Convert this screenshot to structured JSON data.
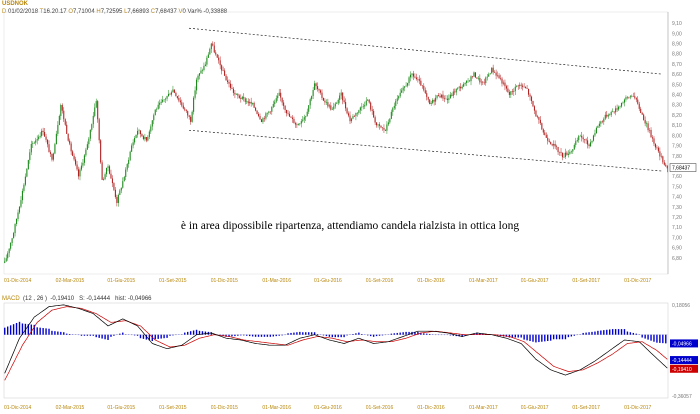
{
  "header": {
    "symbol": "USDNOK",
    "date": "01/02/2018",
    "time": "16.20.17",
    "open": "7,71004",
    "high": "7,72595",
    "low": "7,66893",
    "close": "7,68437",
    "volume": "0",
    "var": "Var% -0,33888"
  },
  "annotation": "è in area dipossibile ripartenza, attendiamo candela rialzista in ottica long",
  "colors": {
    "bull": "#1a8a1a",
    "bear": "#b22222",
    "macd_line": "#000000",
    "signal_line": "#cc0000",
    "hist": "#0000cc",
    "channel": "#000000",
    "axis_text": "#b8860b"
  },
  "chart_data": [
    {
      "type": "candlestick",
      "title": "USDNOK",
      "x_ticks": [
        "01-Dic-2014",
        "02-Mar-2015",
        "01-Giu-2015",
        "01-Set-2015",
        "01-Dic-2015",
        "01-Mar-2016",
        "01-Giu-2016",
        "01-Set-2016",
        "01-Dic-2016",
        "01-Mar-2017",
        "01-Giu-2017",
        "01-Set-2017",
        "01-Dic-2017"
      ],
      "y_ticks": [
        "9,10",
        "9,00",
        "8,90",
        "8,80",
        "8,70",
        "8,60",
        "8,50",
        "8,40",
        "8,30",
        "8,20",
        "8,10",
        "8,00",
        "7,90",
        "7,80",
        "7,70",
        "7,60",
        "7,50",
        "7,40",
        "7,30",
        "7,20",
        "7,10",
        "7,00",
        "6,90",
        "6,80"
      ],
      "ylim": [
        6.7,
        9.15
      ],
      "last_price_label": "7,68437",
      "anchors": [
        [
          0,
          6.75
        ],
        [
          6,
          7.05
        ],
        [
          12,
          7.45
        ],
        [
          18,
          7.9
        ],
        [
          26,
          8.05
        ],
        [
          32,
          7.75
        ],
        [
          38,
          8.3
        ],
        [
          44,
          7.9
        ],
        [
          50,
          7.6
        ],
        [
          56,
          7.9
        ],
        [
          62,
          8.35
        ],
        [
          66,
          7.55
        ],
        [
          70,
          7.7
        ],
        [
          76,
          7.35
        ],
        [
          82,
          7.65
        ],
        [
          86,
          7.9
        ],
        [
          90,
          8.05
        ],
        [
          96,
          7.95
        ],
        [
          102,
          8.25
        ],
        [
          108,
          8.35
        ],
        [
          114,
          8.45
        ],
        [
          120,
          8.3
        ],
        [
          126,
          8.15
        ],
        [
          130,
          8.55
        ],
        [
          136,
          8.7
        ],
        [
          140,
          8.9
        ],
        [
          144,
          8.75
        ],
        [
          150,
          8.55
        ],
        [
          156,
          8.4
        ],
        [
          162,
          8.35
        ],
        [
          168,
          8.3
        ],
        [
          174,
          8.15
        ],
        [
          180,
          8.25
        ],
        [
          186,
          8.4
        ],
        [
          192,
          8.2
        ],
        [
          198,
          8.1
        ],
        [
          204,
          8.2
        ],
        [
          210,
          8.5
        ],
        [
          216,
          8.35
        ],
        [
          222,
          8.25
        ],
        [
          228,
          8.4
        ],
        [
          234,
          8.15
        ],
        [
          240,
          8.25
        ],
        [
          246,
          8.35
        ],
        [
          252,
          8.1
        ],
        [
          258,
          8.05
        ],
        [
          264,
          8.3
        ],
        [
          270,
          8.45
        ],
        [
          276,
          8.6
        ],
        [
          282,
          8.5
        ],
        [
          288,
          8.3
        ],
        [
          294,
          8.4
        ],
        [
          300,
          8.35
        ],
        [
          306,
          8.45
        ],
        [
          312,
          8.5
        ],
        [
          318,
          8.6
        ],
        [
          324,
          8.5
        ],
        [
          330,
          8.65
        ],
        [
          336,
          8.55
        ],
        [
          342,
          8.4
        ],
        [
          348,
          8.5
        ],
        [
          354,
          8.45
        ],
        [
          360,
          8.2
        ],
        [
          366,
          8.0
        ],
        [
          372,
          7.9
        ],
        [
          378,
          7.8
        ],
        [
          384,
          7.85
        ],
        [
          390,
          8.0
        ],
        [
          396,
          7.9
        ],
        [
          402,
          8.1
        ],
        [
          408,
          8.2
        ],
        [
          414,
          8.25
        ],
        [
          420,
          8.35
        ],
        [
          426,
          8.4
        ],
        [
          432,
          8.2
        ],
        [
          438,
          8.0
        ],
        [
          444,
          7.8
        ],
        [
          449,
          7.68
        ]
      ],
      "channel_upper": {
        "from": {
          "x": "01-Set-2015",
          "y": 9.05
        },
        "to": {
          "x": "right",
          "y": 8.6
        }
      },
      "channel_lower": {
        "from": {
          "x": "01-Set-2015",
          "y": 8.05
        },
        "to": {
          "x": "right",
          "y": 7.65
        }
      }
    },
    {
      "type": "macd",
      "title": "MACD",
      "params": "(12 , 26 )",
      "macd_label": "-0,19410",
      "signal_label": "S:",
      "signal_value": "-0,14444",
      "hist_label": "hist:",
      "hist_value": "-0,04966",
      "y_ticks": [
        "0,18056",
        "-0,04966",
        "-0,14444",
        "-0,19410",
        "-0,36057"
      ],
      "ylim": [
        -0.36057,
        0.18056
      ],
      "macd_anchors": [
        [
          0,
          -0.22
        ],
        [
          10,
          -0.02
        ],
        [
          20,
          0.1
        ],
        [
          30,
          0.16
        ],
        [
          40,
          0.17
        ],
        [
          50,
          0.15
        ],
        [
          60,
          0.12
        ],
        [
          70,
          0.05
        ],
        [
          80,
          0.09
        ],
        [
          90,
          0.05
        ],
        [
          100,
          -0.05
        ],
        [
          110,
          -0.08
        ],
        [
          120,
          -0.06
        ],
        [
          130,
          0.0
        ],
        [
          140,
          0.01
        ],
        [
          150,
          -0.02
        ],
        [
          160,
          -0.03
        ],
        [
          170,
          -0.05
        ],
        [
          180,
          -0.06
        ],
        [
          190,
          -0.06
        ],
        [
          200,
          -0.02
        ],
        [
          210,
          0.0
        ],
        [
          220,
          -0.03
        ],
        [
          230,
          -0.05
        ],
        [
          240,
          -0.02
        ],
        [
          250,
          -0.05
        ],
        [
          260,
          -0.04
        ],
        [
          270,
          -0.01
        ],
        [
          280,
          0.02
        ],
        [
          290,
          0.02
        ],
        [
          300,
          0.01
        ],
        [
          310,
          -0.01
        ],
        [
          320,
          0.01
        ],
        [
          330,
          0.0
        ],
        [
          340,
          -0.02
        ],
        [
          350,
          -0.05
        ],
        [
          360,
          -0.14
        ],
        [
          370,
          -0.2
        ],
        [
          380,
          -0.23
        ],
        [
          390,
          -0.2
        ],
        [
          400,
          -0.15
        ],
        [
          410,
          -0.09
        ],
        [
          420,
          -0.03
        ],
        [
          430,
          -0.04
        ],
        [
          440,
          -0.12
        ],
        [
          449,
          -0.19
        ]
      ],
      "signal_anchors": [
        [
          0,
          -0.26
        ],
        [
          12,
          -0.06
        ],
        [
          22,
          0.07
        ],
        [
          32,
          0.14
        ],
        [
          42,
          0.16
        ],
        [
          52,
          0.15
        ],
        [
          62,
          0.12
        ],
        [
          72,
          0.07
        ],
        [
          82,
          0.08
        ],
        [
          92,
          0.05
        ],
        [
          102,
          -0.03
        ],
        [
          112,
          -0.07
        ],
        [
          122,
          -0.06
        ],
        [
          132,
          -0.02
        ],
        [
          142,
          0.0
        ],
        [
          152,
          -0.01
        ],
        [
          162,
          -0.03
        ],
        [
          172,
          -0.04
        ],
        [
          182,
          -0.05
        ],
        [
          192,
          -0.06
        ],
        [
          202,
          -0.03
        ],
        [
          212,
          -0.01
        ],
        [
          222,
          -0.02
        ],
        [
          232,
          -0.04
        ],
        [
          242,
          -0.03
        ],
        [
          252,
          -0.04
        ],
        [
          262,
          -0.04
        ],
        [
          272,
          -0.02
        ],
        [
          282,
          0.01
        ],
        [
          292,
          0.02
        ],
        [
          302,
          0.01
        ],
        [
          312,
          0.0
        ],
        [
          322,
          0.0
        ],
        [
          332,
          0.0
        ],
        [
          342,
          -0.01
        ],
        [
          352,
          -0.04
        ],
        [
          362,
          -0.11
        ],
        [
          372,
          -0.18
        ],
        [
          382,
          -0.21
        ],
        [
          392,
          -0.2
        ],
        [
          402,
          -0.16
        ],
        [
          412,
          -0.11
        ],
        [
          422,
          -0.05
        ],
        [
          432,
          -0.04
        ],
        [
          442,
          -0.09
        ],
        [
          449,
          -0.14
        ]
      ]
    }
  ]
}
